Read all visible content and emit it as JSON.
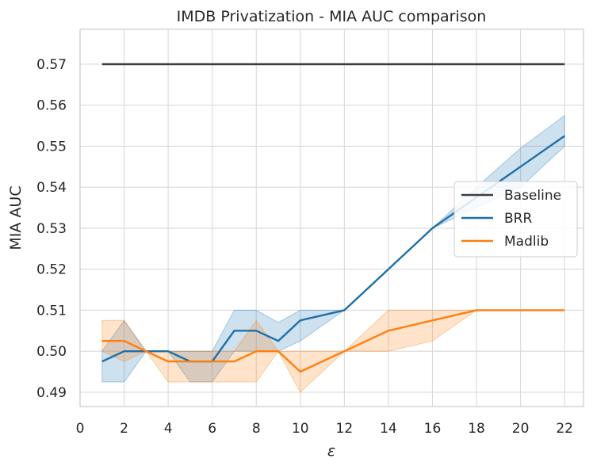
{
  "chart_data": {
    "type": "line",
    "title": "IMDB Privatization - MIA AUC comparison",
    "xlabel": "ε",
    "ylabel": "MIA AUC",
    "xlim": [
      0,
      23
    ],
    "ylim": [
      0.4865,
      0.5785
    ],
    "xticks": [
      0,
      2,
      4,
      6,
      8,
      10,
      12,
      14,
      16,
      18,
      20,
      22
    ],
    "yticks": [
      0.49,
      0.5,
      0.51,
      0.52,
      0.53,
      0.54,
      0.55,
      0.56,
      0.57
    ],
    "ytick_labels": [
      "0.49",
      "0.50",
      "0.51",
      "0.52",
      "0.53",
      "0.54",
      "0.55",
      "0.56",
      "0.57"
    ],
    "grid": true,
    "legend_position": "center-right",
    "series": [
      {
        "name": "Baseline",
        "color": "#3d3d3d",
        "x": [
          1,
          22
        ],
        "y": [
          0.57,
          0.57
        ]
      },
      {
        "name": "BRR",
        "color": "#1f6fa8",
        "band_color": "#1f77b4",
        "x": [
          1,
          2,
          3,
          4,
          5,
          6,
          7,
          8,
          9,
          10,
          12,
          14,
          16,
          18,
          20,
          22
        ],
        "y": [
          0.4975,
          0.5,
          0.5,
          0.5,
          0.4975,
          0.4975,
          0.505,
          0.505,
          0.5025,
          0.5075,
          0.51,
          0.52,
          0.53,
          0.5375,
          0.545,
          0.5525
        ],
        "lower": [
          0.4925,
          0.4925,
          0.5,
          0.5,
          0.4925,
          0.4925,
          0.5,
          0.5,
          0.5,
          0.5025,
          0.51,
          0.52,
          0.53,
          0.535,
          0.54,
          0.55
        ],
        "upper": [
          0.5,
          0.5075,
          0.5,
          0.5,
          0.5,
          0.5,
          0.51,
          0.51,
          0.507,
          0.51,
          0.51,
          0.52,
          0.53,
          0.54,
          0.5495,
          0.5575
        ]
      },
      {
        "name": "Madlib",
        "color": "#ff7f0e",
        "band_color": "#ff7f0e",
        "x": [
          1,
          2,
          3,
          4,
          5,
          6,
          7,
          8,
          9,
          10,
          12,
          14,
          16,
          18,
          20,
          22
        ],
        "y": [
          0.5025,
          0.5025,
          0.5,
          0.4975,
          0.4975,
          0.4975,
          0.4975,
          0.5,
          0.5,
          0.495,
          0.5,
          0.505,
          0.5075,
          0.51,
          0.51,
          0.51
        ],
        "lower": [
          0.5,
          0.4975,
          0.5,
          0.4925,
          0.4925,
          0.4925,
          0.4925,
          0.4925,
          0.5,
          0.49,
          0.5,
          0.5,
          0.5025,
          0.51,
          0.51,
          0.51
        ],
        "upper": [
          0.5075,
          0.5075,
          0.5,
          0.5,
          0.5,
          0.5,
          0.5,
          0.5075,
          0.5,
          0.5,
          0.5,
          0.51,
          0.51,
          0.51,
          0.51,
          0.51
        ]
      }
    ]
  }
}
